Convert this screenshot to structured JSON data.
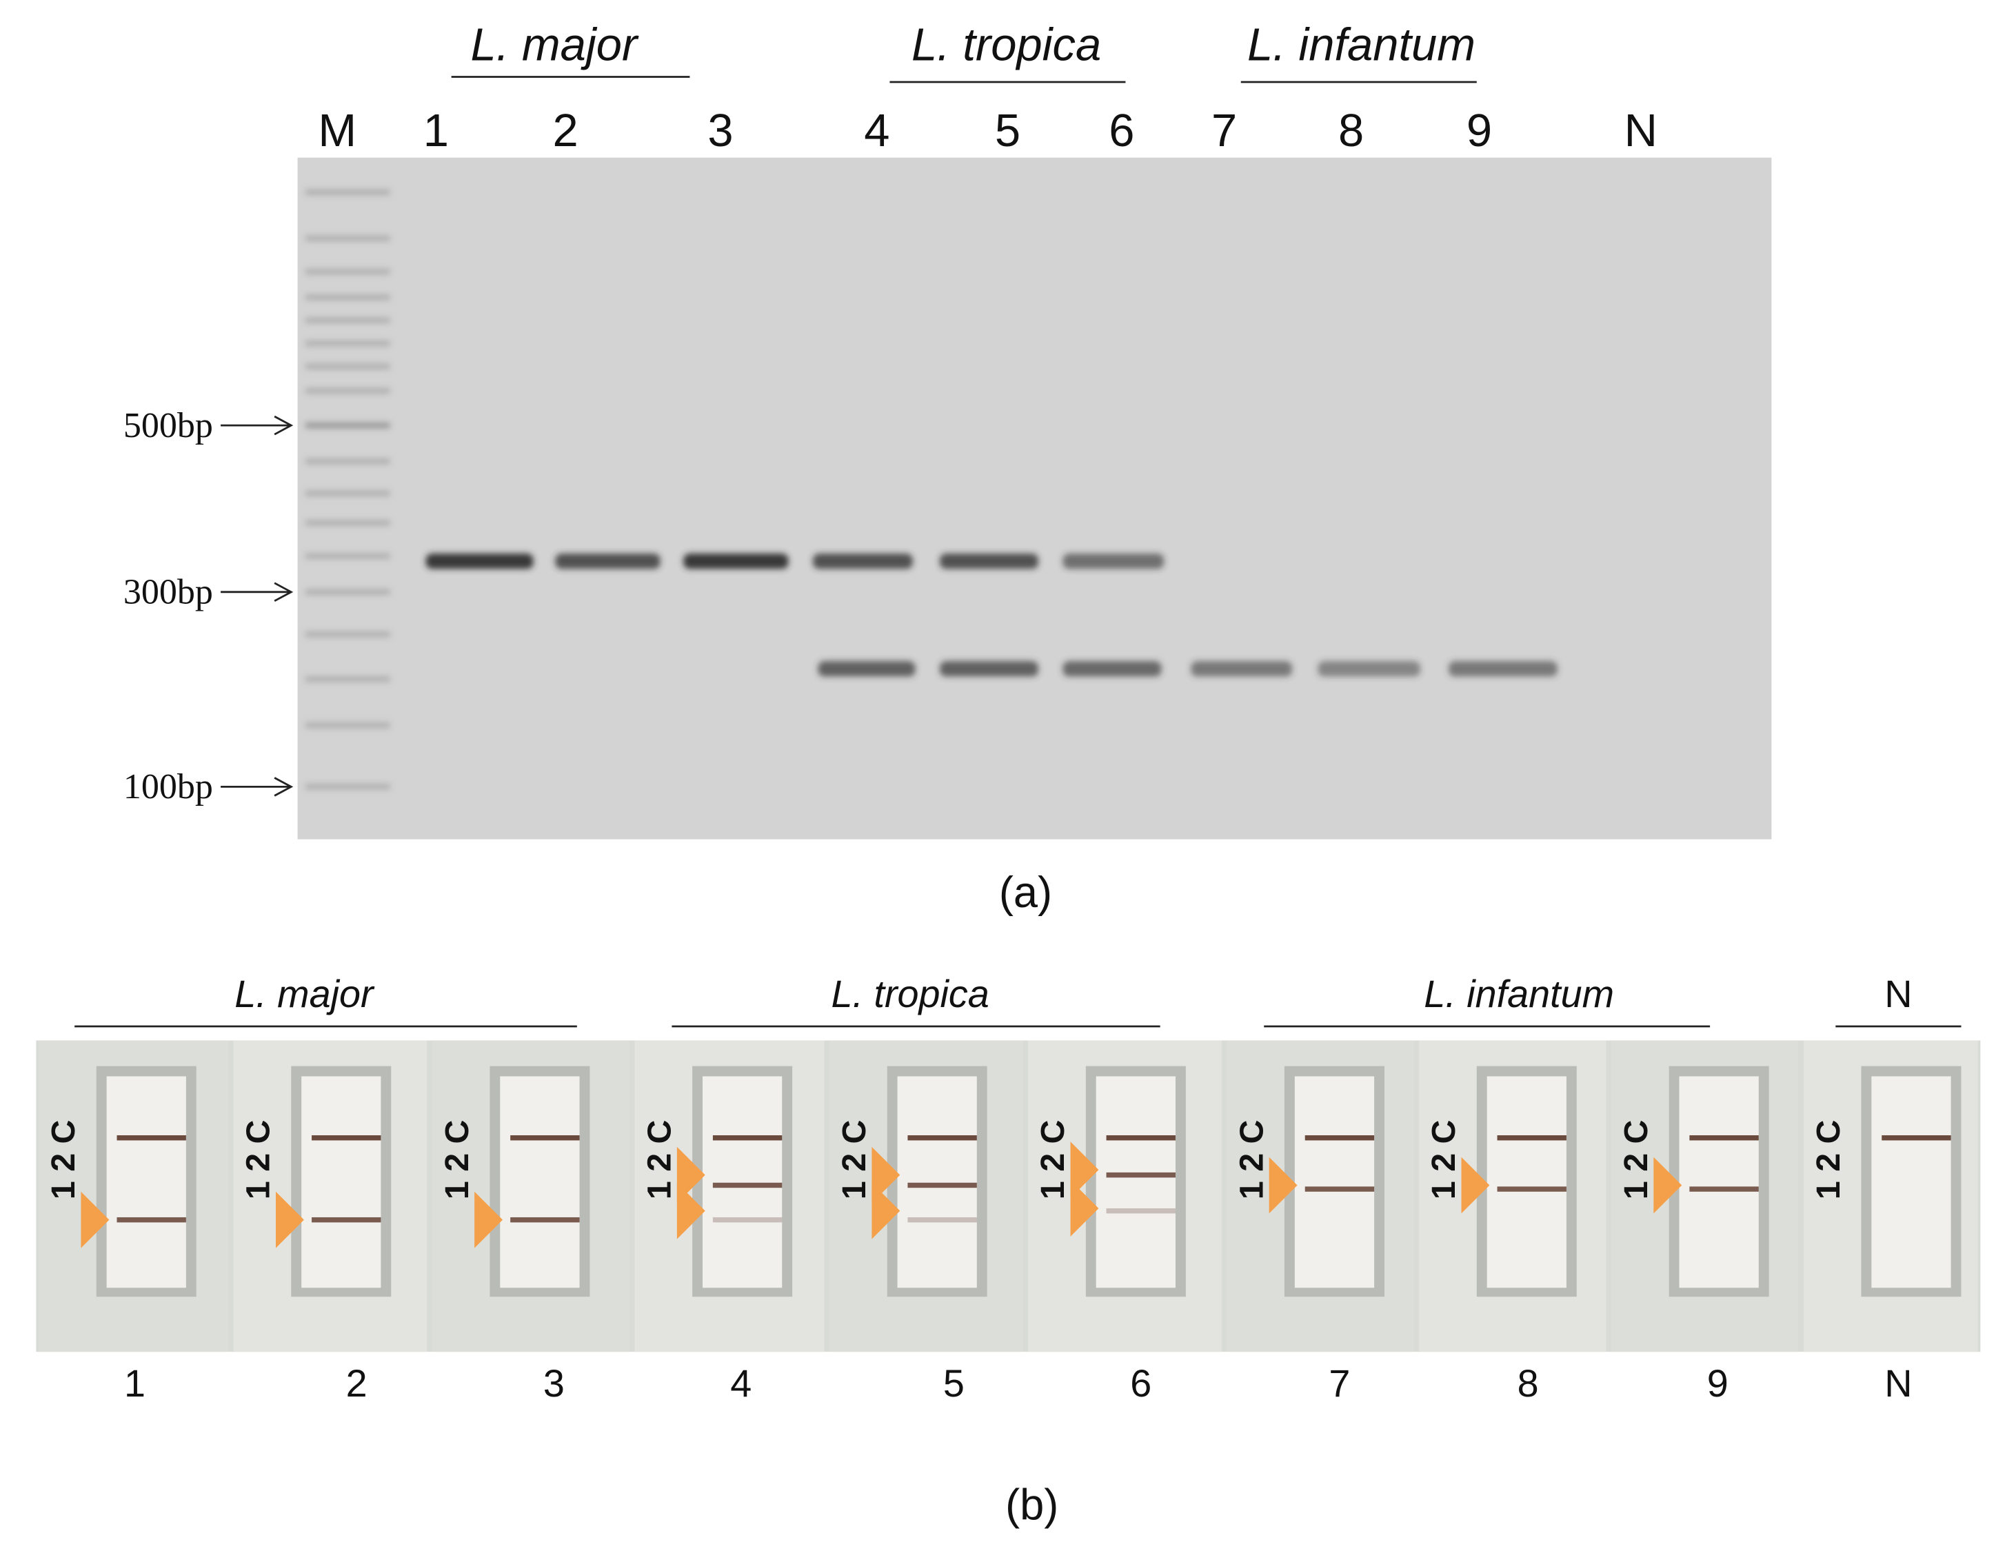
{
  "panel_a": {
    "group_labels": [
      "L. major",
      "L. tropica",
      "L. infantum"
    ],
    "lane_labels": [
      "M",
      "1",
      "2",
      "3",
      "4",
      "5",
      "6",
      "7",
      "8",
      "9",
      "N"
    ],
    "marker_labels": [
      "500bp",
      "300bp",
      "100bp"
    ],
    "caption": "(a)"
  },
  "panel_b": {
    "group_labels": [
      "L. major",
      "L. tropica",
      "L. infantum",
      "N"
    ],
    "strip_label": "1 2 C",
    "lane_labels": [
      "1",
      "2",
      "3",
      "4",
      "5",
      "6",
      "7",
      "8",
      "9",
      "N"
    ],
    "caption": "(b)"
  }
}
